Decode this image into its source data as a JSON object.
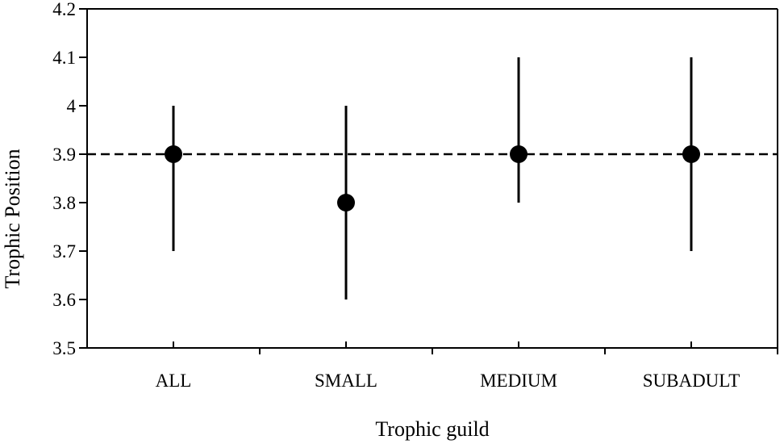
{
  "chart_data": {
    "type": "scatter",
    "title": "",
    "xlabel": "Trophic guild",
    "ylabel": "Trophic Position",
    "categories": [
      "ALL",
      "SMALL",
      "MEDIUM",
      "SUBADULT"
    ],
    "values": [
      3.9,
      3.8,
      3.9,
      3.9
    ],
    "error_low": [
      3.7,
      3.6,
      3.8,
      3.7
    ],
    "error_high": [
      4.0,
      4.0,
      4.1,
      4.1
    ],
    "reference_line": {
      "y": 3.9,
      "style": "dashed"
    },
    "ylim": [
      3.5,
      4.2
    ],
    "yticks": [
      "3.5",
      "3.6",
      "3.7",
      "3.8",
      "3.9",
      "4",
      "4.1",
      "4.2"
    ],
    "grid": false,
    "colors": {
      "marker": "#000000",
      "line": "#000000",
      "background": "#ffffff"
    }
  }
}
